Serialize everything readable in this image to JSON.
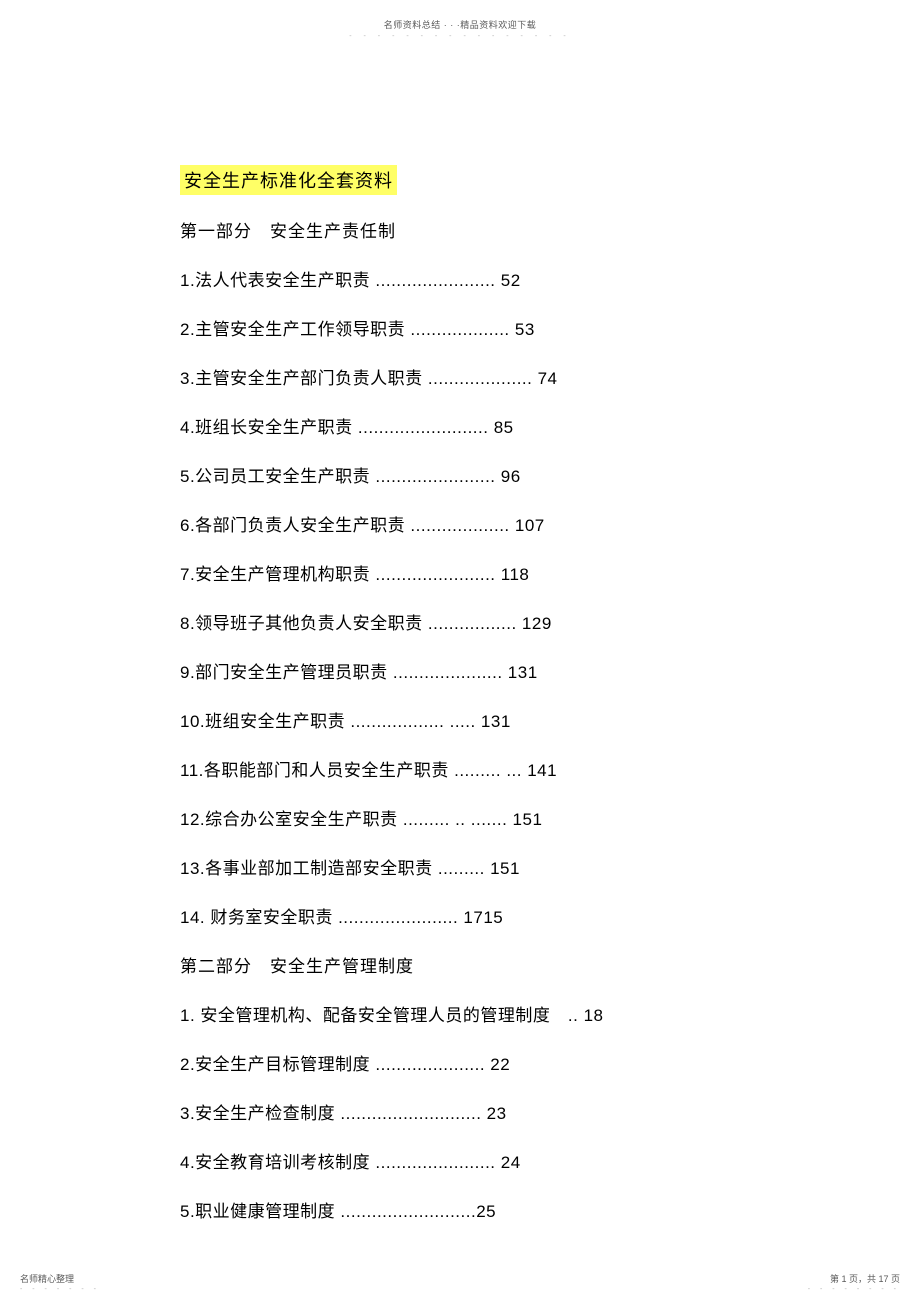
{
  "header": {
    "text": "名师资料总结 · · ·精品资料欢迎下载"
  },
  "title": "安全生产标准化全套资料",
  "section1": "第一部分　安全生产责任制",
  "items": [
    "1.法人代表安全生产职责   ....................... 52",
    "2.主管安全生产工作领导职责   ................... 53",
    "3.主管安全生产部门负责人职责   .................... 74",
    "4.班组长安全生产职责   ......................... 85",
    "5.公司员工安全生产职责   ....................... 96",
    "6.各部门负责人安全生产职责   ................... 107",
    "7.安全生产管理机构职责   ....................... 118",
    "8.领导班子其他负责人安全职责   ................. 129",
    "9.部门安全生产管理员职责   ..................... 131",
    "10.班组安全生产职责   .................. ..... 131",
    "11.各职能部门和人员安全生产职责   ......... ... 141",
    "12.综合办公室安全生产职责   ......... .. ....... 151",
    "13.各事业部加工制造部安全职责   ......... 151",
    "14.  财务室安全职责  ....................... 1715"
  ],
  "section2": "第二部分　安全生产管理制度",
  "items2": [
    "1.  安全管理机构、配备安全管理人员的管理制度　.. 18",
    "2.安全生产目标管理制度   ..................... 22",
    "3.安全生产检查制度   ........................... 23",
    "4.安全教育培训考核制度   ....................... 24",
    "5.职业健康管理制度   ..........................25"
  ],
  "footer": {
    "left": "名师精心整理",
    "right": "第 1 页，共 17 页"
  }
}
